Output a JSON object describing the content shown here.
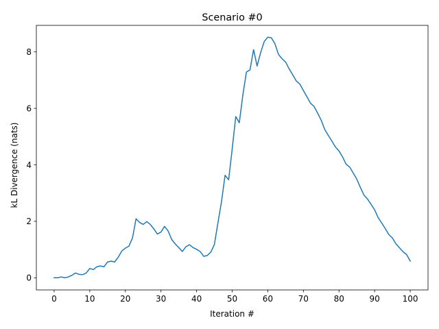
{
  "chart_data": {
    "type": "line",
    "title": "Scenario #0",
    "xlabel": "Iteration #",
    "ylabel": "kL Divergence (nats)",
    "xlim": [
      -5,
      105
    ],
    "ylim": [
      -0.43,
      8.94
    ],
    "xticks": [
      0,
      10,
      20,
      30,
      40,
      50,
      60,
      70,
      80,
      90,
      100
    ],
    "yticks": [
      0,
      2,
      4,
      6,
      8
    ],
    "grid": false,
    "line_color": "#1f77b4",
    "series": [
      {
        "x": [
          0,
          1,
          2,
          3,
          4,
          5,
          6,
          7,
          8,
          9,
          10,
          11,
          12,
          13,
          14,
          15,
          16,
          17,
          18,
          19,
          20,
          21,
          22,
          23,
          24,
          25,
          26,
          27,
          28,
          29,
          30,
          31,
          32,
          33,
          34,
          35,
          36,
          37,
          38,
          39,
          40,
          41,
          42,
          43,
          44,
          45,
          46,
          47,
          48,
          49,
          50,
          51,
          52,
          53,
          54,
          55,
          56,
          57,
          58,
          59,
          60,
          61,
          62,
          63,
          64,
          65,
          66,
          67,
          68,
          69,
          70,
          71,
          72,
          73,
          74,
          75,
          76,
          77,
          78,
          79,
          80,
          81,
          82,
          83,
          84,
          85,
          86,
          87,
          88,
          89,
          90,
          91,
          92,
          93,
          94,
          95,
          96,
          97,
          98,
          99,
          100
        ],
        "values": [
          0.0,
          0.0,
          0.03,
          0.0,
          0.03,
          0.09,
          0.17,
          0.12,
          0.11,
          0.17,
          0.33,
          0.29,
          0.39,
          0.42,
          0.39,
          0.56,
          0.59,
          0.56,
          0.73,
          0.95,
          1.05,
          1.12,
          1.41,
          2.09,
          1.96,
          1.89,
          1.99,
          1.89,
          1.73,
          1.55,
          1.62,
          1.82,
          1.66,
          1.36,
          1.2,
          1.07,
          0.93,
          1.1,
          1.17,
          1.07,
          1.01,
          0.93,
          0.76,
          0.79,
          0.91,
          1.18,
          1.95,
          2.7,
          3.63,
          3.47,
          4.56,
          5.71,
          5.49,
          6.48,
          7.29,
          7.36,
          8.08,
          7.5,
          7.98,
          8.37,
          8.52,
          8.5,
          8.29,
          7.91,
          7.76,
          7.64,
          7.4,
          7.19,
          6.97,
          6.86,
          6.63,
          6.41,
          6.18,
          6.07,
          5.83,
          5.58,
          5.25,
          5.04,
          4.84,
          4.63,
          4.49,
          4.28,
          4.02,
          3.92,
          3.71,
          3.49,
          3.2,
          2.93,
          2.79,
          2.6,
          2.41,
          2.13,
          1.94,
          1.74,
          1.53,
          1.41,
          1.2,
          1.06,
          0.92,
          0.82,
          0.59
        ]
      }
    ]
  }
}
